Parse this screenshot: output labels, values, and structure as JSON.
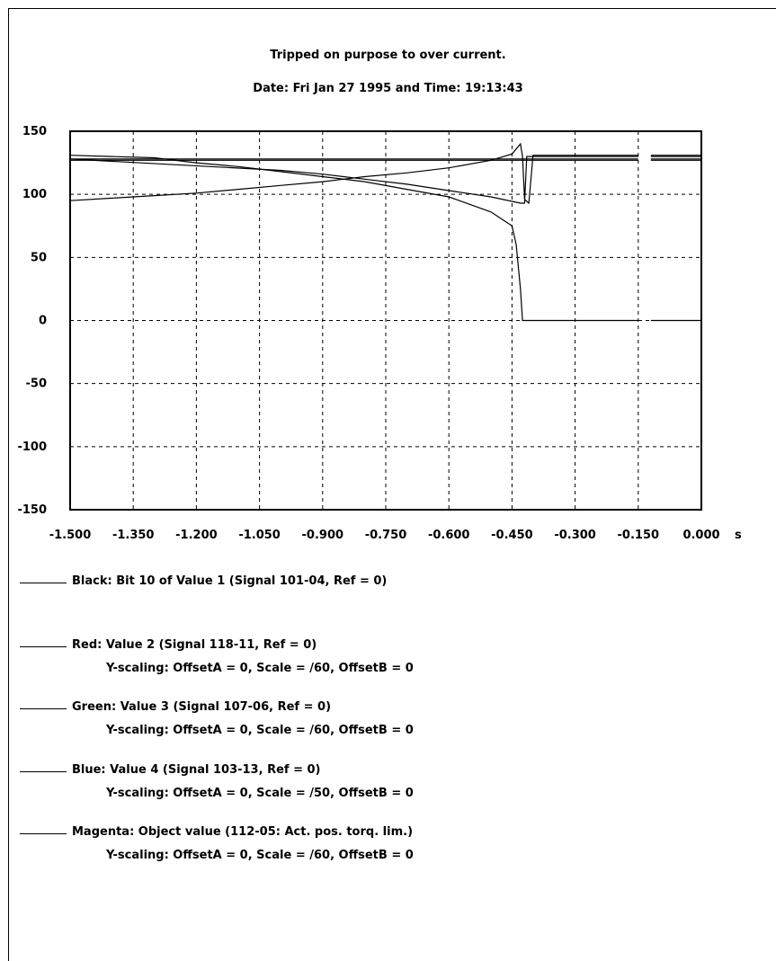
{
  "chart_data": {
    "type": "line",
    "title": "Tripped on purpose to over current.",
    "subtitle": "Date: Fri Jan 27 1995 and Time: 19:13:43",
    "xlabel": "",
    "xunit": "s",
    "ylabel": "",
    "xlim": [
      -1.5,
      0.0
    ],
    "ylim": [
      -150,
      150
    ],
    "x_ticks": [
      "-1.500",
      "-1.350",
      "-1.200",
      "-1.050",
      "-0.900",
      "-0.750",
      "-0.600",
      "-0.450",
      "-0.300",
      "-0.150",
      "0.000"
    ],
    "y_ticks": [
      "150",
      "100",
      "50",
      "0",
      "-50",
      "-100",
      "-150"
    ],
    "grid": true,
    "series": [
      {
        "name": "Black: Bit 10 of Value 1 (Signal 101-04, Ref = 0)",
        "color": "#000000",
        "x": [
          -1.5,
          -0.42,
          -0.42,
          -0.15,
          -0.12,
          0.0
        ],
        "y": [
          128,
          128,
          128,
          128,
          128,
          128
        ]
      },
      {
        "name": "Red: Value 2 (Signal 118-11, Ref = 0)",
        "color": "#000000",
        "x": [
          -1.5,
          -1.4,
          -1.3,
          -1.2,
          -1.1,
          -1.0,
          -0.9,
          -0.8,
          -0.7,
          -0.6,
          -0.5,
          -0.45,
          -0.43,
          -0.425,
          -0.42,
          -0.41,
          -0.4,
          -0.15,
          -0.12,
          0.0
        ],
        "y": [
          95,
          97,
          99,
          101,
          104,
          107,
          110,
          114,
          117,
          121,
          127,
          132,
          140,
          130,
          96,
          93,
          131,
          131,
          131,
          131
        ]
      },
      {
        "name": "Green: Value 3 (Signal 107-06, Ref = 0)",
        "color": "#000000",
        "x": [
          -1.5,
          -1.4,
          -1.3,
          -1.2,
          -1.1,
          -1.0,
          -0.9,
          -0.8,
          -0.7,
          -0.6,
          -0.5,
          -0.45,
          -0.44,
          -0.43,
          -0.425,
          -0.42,
          -0.15,
          -0.12,
          0.0
        ],
        "y": [
          131,
          130,
          129,
          125,
          122,
          118,
          114,
          110,
          104,
          98,
          86,
          75,
          60,
          25,
          0,
          0,
          0,
          0,
          0
        ]
      },
      {
        "name": "Blue: Value 4 (Signal 103-13, Ref = 0)",
        "color": "#000000",
        "x": [
          -1.5,
          -1.0,
          -0.9,
          -0.8,
          -0.7,
          -0.6,
          -0.5,
          -0.43,
          -0.42,
          -0.415,
          -0.15,
          -0.12,
          0.0
        ],
        "y": [
          128,
          119,
          116,
          112,
          108,
          103,
          98,
          93,
          93,
          130,
          130,
          130,
          130
        ]
      },
      {
        "name": "Magenta: Object value (112-05: Act. pos. torq. lim.)",
        "color": "#000000",
        "x": [
          -1.5,
          -1.2,
          -0.9,
          -0.6,
          -0.42,
          -0.42,
          -0.15,
          -0.12,
          0.0
        ],
        "y": [
          127,
          127,
          127,
          127,
          127,
          127,
          127,
          127,
          127
        ]
      }
    ]
  },
  "legend": [
    {
      "label": "Black: Bit 10 of Value 1 (Signal 101-04, Ref = 0)",
      "scaling": ""
    },
    {
      "label": "Red: Value 2 (Signal 118-11, Ref = 0)",
      "scaling": "Y-scaling: OffsetA = 0, Scale = /60, OffsetB = 0"
    },
    {
      "label": "Green: Value 3 (Signal 107-06, Ref = 0)",
      "scaling": "Y-scaling: OffsetA = 0, Scale = /60, OffsetB = 0"
    },
    {
      "label": "Blue: Value 4 (Signal 103-13, Ref = 0)",
      "scaling": "Y-scaling: OffsetA = 0, Scale = /50, OffsetB = 0"
    },
    {
      "label": "Magenta: Object value (112-05: Act. pos. torq. lim.)",
      "scaling": "Y-scaling: OffsetA = 0, Scale = /60, OffsetB = 0"
    }
  ]
}
